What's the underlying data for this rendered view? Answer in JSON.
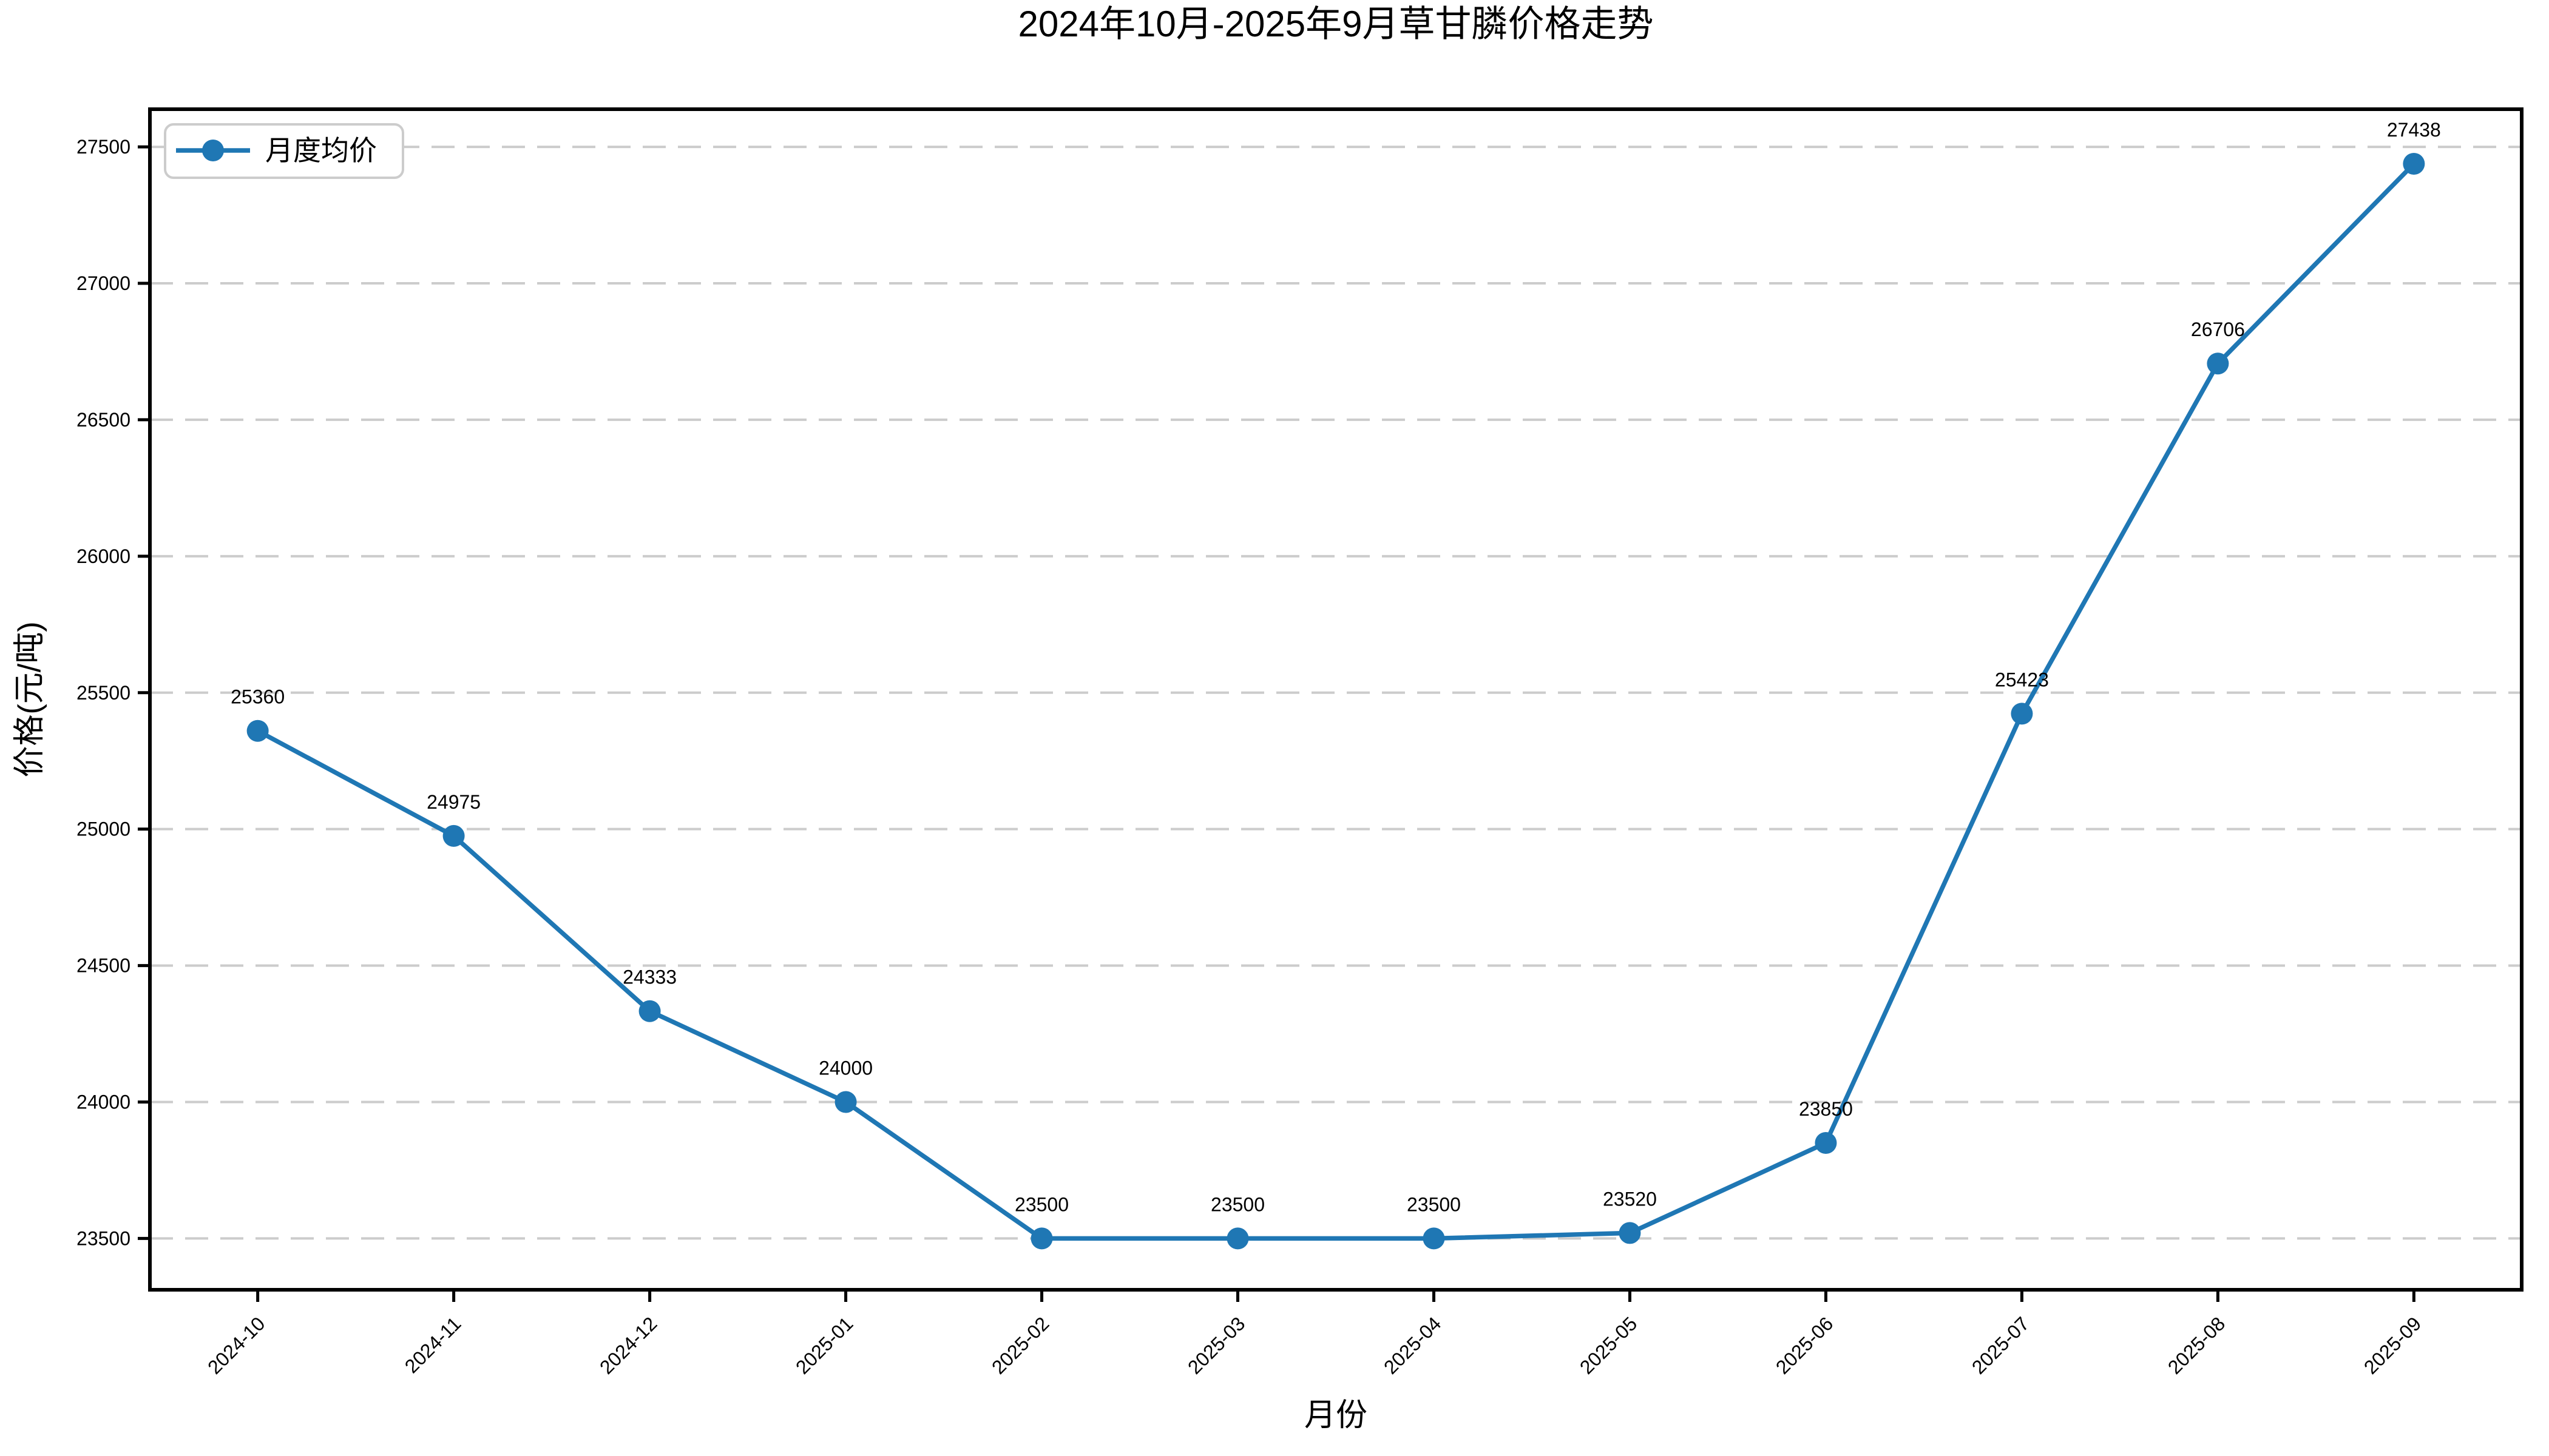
{
  "chart_data": {
    "type": "line",
    "title": "2024年10月-2025年9月草甘膦价格走势",
    "xlabel": "月份",
    "ylabel": "价格(元/吨)",
    "categories": [
      "2024-10",
      "2024-11",
      "2024-12",
      "2025-01",
      "2025-02",
      "2025-03",
      "2025-04",
      "2025-05",
      "2025-06",
      "2025-07",
      "2025-08",
      "2025-09"
    ],
    "series": [
      {
        "name": "月度均价",
        "values": [
          25360,
          24975,
          24333,
          24000,
          23500,
          23500,
          23500,
          23520,
          23850,
          25423,
          26706,
          27438
        ]
      }
    ],
    "data_labels_shown": true,
    "y_ticks": [
      23500,
      24000,
      24500,
      25000,
      25500,
      26000,
      26500,
      27000,
      27500
    ],
    "ylim": [
      23312,
      27638
    ],
    "grid": {
      "axis": "y",
      "style": "dashed",
      "on": true
    },
    "legend_position": "upper-left",
    "colors": {
      "line": "#1f77b4",
      "marker": "#1f77b4",
      "grid": "#cccccc",
      "spine": "#000000",
      "text": "#000000",
      "legend_border": "#cccccc",
      "background": "#ffffff"
    }
  }
}
